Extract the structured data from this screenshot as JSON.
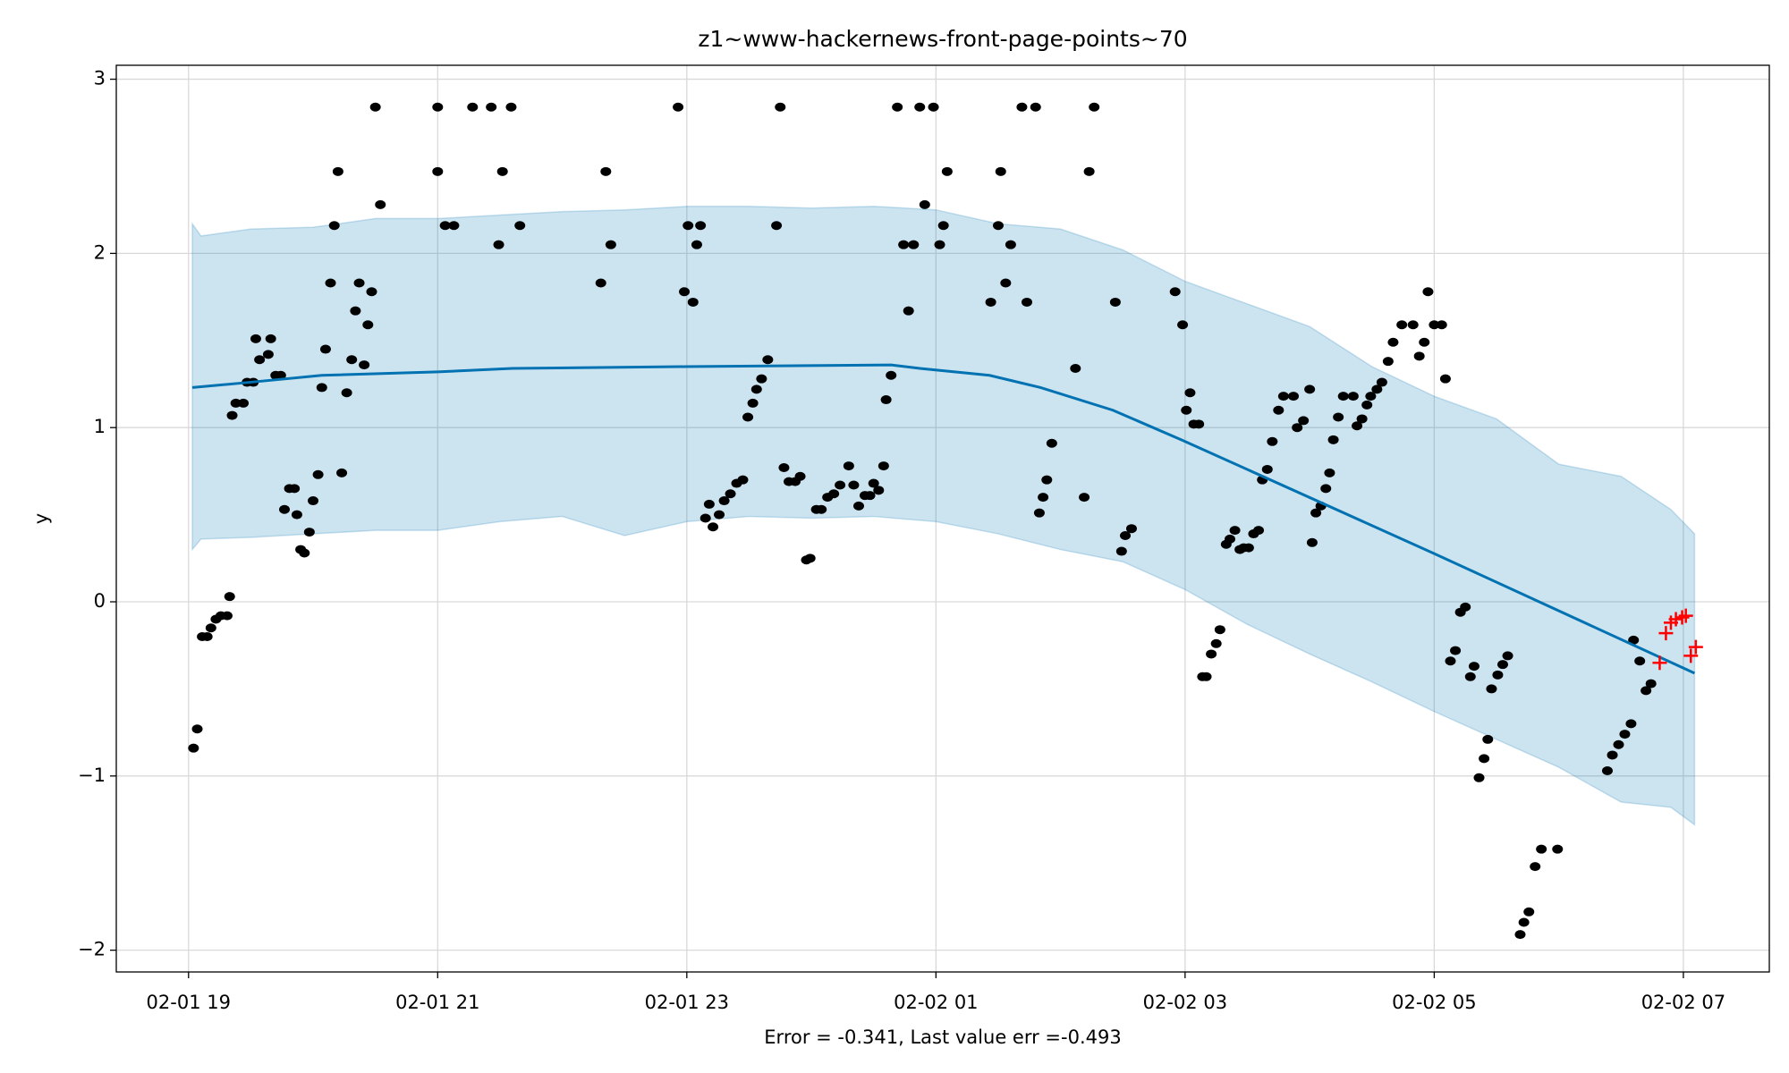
{
  "chart_data": {
    "type": "forecast",
    "title": "z1~www-hackernews-front-page-points~70",
    "xlabel": "Error = -0.341, Last value err =-0.493",
    "ylabel": "y",
    "xlim": [
      -0.58,
      12.69
    ],
    "ylim": [
      -2.125,
      3.08
    ],
    "xticks": [
      {
        "value": 0,
        "label": "02-01 19"
      },
      {
        "value": 2,
        "label": "02-01 21"
      },
      {
        "value": 4,
        "label": "02-01 23"
      },
      {
        "value": 6,
        "label": "02-02 01"
      },
      {
        "value": 8,
        "label": "02-02 03"
      },
      {
        "value": 10,
        "label": "02-02 05"
      },
      {
        "value": 12,
        "label": "02-02 07"
      }
    ],
    "yticks": [
      {
        "value": -2,
        "label": "−2"
      },
      {
        "value": -1,
        "label": "−1"
      },
      0,
      1,
      2,
      3
    ],
    "grid": true,
    "interval": {
      "color": "#0072b2",
      "x": [
        0.03,
        0.1,
        0.5,
        1.0,
        1.5,
        2.0,
        2.5,
        3.0,
        3.5,
        4.0,
        4.5,
        5.0,
        5.5,
        6.0,
        6.5,
        7.0,
        7.5,
        8.0,
        8.5,
        9.0,
        9.5,
        10.0,
        10.5,
        11.0,
        11.5,
        11.9,
        12.09
      ],
      "upper": [
        2.17,
        2.1,
        2.14,
        2.15,
        2.2,
        2.2,
        2.22,
        2.24,
        2.25,
        2.27,
        2.27,
        2.26,
        2.27,
        2.25,
        2.17,
        2.14,
        2.02,
        1.84,
        1.71,
        1.58,
        1.35,
        1.18,
        1.05,
        0.79,
        0.72,
        0.53,
        0.39
      ],
      "lower": [
        0.3,
        0.36,
        0.37,
        0.39,
        0.41,
        0.41,
        0.46,
        0.49,
        0.38,
        0.46,
        0.49,
        0.48,
        0.49,
        0.46,
        0.39,
        0.3,
        0.23,
        0.07,
        -0.13,
        -0.3,
        -0.46,
        -0.63,
        -0.79,
        -0.95,
        -1.15,
        -1.18,
        -1.28
      ]
    },
    "forecast": {
      "color": "#0072b2",
      "x": [
        0.03,
        0.49,
        1.07,
        2.0,
        2.6,
        3.99,
        5.64,
        5.87,
        6.43,
        6.84,
        7.42,
        7.97,
        9.99,
        12.09
      ],
      "y": [
        1.23,
        1.26,
        1.3,
        1.32,
        1.34,
        1.35,
        1.36,
        1.34,
        1.3,
        1.23,
        1.1,
        0.93,
        0.28,
        -0.41
      ]
    },
    "observed": {
      "color": "#000000",
      "x": [
        0.04,
        0.07,
        0.11,
        0.15,
        0.18,
        0.22,
        0.26,
        0.31,
        0.33,
        0.35,
        0.38,
        0.44,
        0.47,
        0.52,
        0.54,
        0.57,
        0.64,
        0.66,
        0.7,
        0.74,
        0.77,
        0.81,
        0.85,
        0.87,
        0.9,
        0.93,
        0.97,
        1.0,
        1.04,
        1.07,
        1.1,
        1.14,
        1.17,
        1.2,
        1.23,
        1.27,
        1.31,
        1.34,
        1.37,
        1.41,
        1.44,
        1.47,
        1.5,
        1.54,
        2.0,
        2.0,
        2.06,
        2.13,
        2.28,
        2.43,
        2.49,
        2.52,
        2.59,
        2.66,
        3.31,
        3.35,
        3.39,
        3.93,
        3.98,
        4.01,
        4.05,
        4.08,
        4.11,
        4.15,
        4.18,
        4.21,
        4.26,
        4.3,
        4.35,
        4.4,
        4.45,
        4.49,
        4.53,
        4.56,
        4.6,
        4.65,
        4.72,
        4.75,
        4.78,
        4.82,
        4.87,
        4.91,
        4.96,
        4.99,
        5.04,
        5.08,
        5.13,
        5.18,
        5.23,
        5.3,
        5.34,
        5.38,
        5.43,
        5.47,
        5.5,
        5.54,
        5.58,
        5.6,
        5.64,
        5.69,
        5.74,
        5.78,
        5.82,
        5.87,
        5.91,
        5.98,
        6.03,
        6.06,
        6.09,
        6.44,
        6.5,
        6.52,
        6.56,
        6.6,
        6.69,
        6.73,
        6.8,
        6.83,
        6.86,
        6.89,
        6.93,
        7.12,
        7.19,
        7.23,
        7.27,
        7.44,
        7.49,
        7.52,
        7.57,
        7.92,
        7.98,
        8.01,
        8.04,
        8.07,
        8.11,
        8.14,
        8.17,
        8.21,
        8.25,
        8.28,
        8.33,
        8.36,
        8.4,
        8.44,
        8.47,
        8.51,
        8.55,
        8.59,
        8.62,
        8.66,
        8.7,
        8.75,
        8.79,
        8.87,
        8.9,
        8.95,
        9.0,
        9.02,
        9.05,
        9.09,
        9.13,
        9.16,
        9.19,
        9.23,
        9.27,
        9.35,
        9.38,
        9.42,
        9.46,
        9.49,
        9.54,
        9.58,
        9.63,
        9.67,
        9.74,
        9.83,
        9.88,
        9.92,
        9.95,
        10.0,
        10.06,
        10.09,
        10.13,
        10.17,
        10.21,
        10.25,
        10.29,
        10.32,
        10.36,
        10.4,
        10.43,
        10.46,
        10.51,
        10.55,
        10.59,
        10.69,
        10.72,
        10.76,
        10.81,
        10.86,
        10.99,
        11.39,
        11.43,
        11.48,
        11.53,
        11.58,
        11.6,
        11.65,
        11.7,
        11.74
      ],
      "y": [
        -0.84,
        -0.73,
        -0.2,
        -0.2,
        -0.15,
        -0.1,
        -0.08,
        -0.08,
        0.03,
        1.07,
        1.14,
        1.14,
        1.26,
        1.26,
        1.51,
        1.39,
        1.42,
        1.51,
        1.3,
        1.3,
        0.53,
        0.65,
        0.65,
        0.5,
        0.3,
        0.28,
        0.4,
        0.58,
        0.73,
        1.23,
        1.45,
        1.83,
        2.16,
        2.47,
        0.74,
        1.2,
        1.39,
        1.67,
        1.83,
        1.36,
        1.59,
        1.78,
        2.84,
        2.28,
        2.84,
        2.47,
        2.16,
        2.16,
        2.84,
        2.84,
        2.05,
        2.47,
        2.84,
        2.16,
        1.83,
        2.47,
        2.05,
        2.84,
        1.78,
        2.16,
        1.72,
        2.05,
        2.16,
        0.48,
        0.56,
        0.43,
        0.5,
        0.58,
        0.62,
        0.68,
        0.7,
        1.06,
        1.14,
        1.22,
        1.28,
        1.39,
        2.16,
        2.84,
        0.77,
        0.69,
        0.69,
        0.72,
        0.24,
        0.25,
        0.53,
        0.53,
        0.6,
        0.62,
        0.67,
        0.78,
        0.67,
        0.55,
        0.61,
        0.61,
        0.68,
        0.64,
        0.78,
        1.16,
        1.3,
        2.84,
        2.05,
        1.67,
        2.05,
        2.84,
        2.28,
        2.84,
        2.05,
        2.16,
        2.47,
        1.72,
        2.16,
        2.47,
        1.83,
        2.05,
        2.84,
        1.72,
        2.84,
        0.51,
        0.6,
        0.7,
        0.91,
        1.34,
        0.6,
        2.47,
        2.84,
        1.72,
        0.29,
        0.38,
        0.42,
        1.78,
        1.59,
        1.1,
        1.2,
        1.02,
        1.02,
        -0.43,
        -0.43,
        -0.3,
        -0.24,
        -0.16,
        0.33,
        0.36,
        0.41,
        0.3,
        0.31,
        0.31,
        0.39,
        0.41,
        0.7,
        0.76,
        0.92,
        1.1,
        1.18,
        1.18,
        1.0,
        1.04,
        1.22,
        0.34,
        0.51,
        0.55,
        0.65,
        0.74,
        0.93,
        1.06,
        1.18,
        1.18,
        1.01,
        1.05,
        1.13,
        1.18,
        1.22,
        1.26,
        1.38,
        1.49,
        1.59,
        1.59,
        1.41,
        1.49,
        1.78,
        1.59,
        1.59,
        1.28,
        -0.34,
        -0.28,
        -0.06,
        -0.03,
        -0.43,
        -0.37,
        -1.01,
        -0.9,
        -0.79,
        -0.5,
        -0.42,
        -0.36,
        -0.31,
        -1.91,
        -1.84,
        -1.78,
        -1.52,
        -1.42,
        -1.42,
        -0.97,
        -0.88,
        -0.82,
        -0.76,
        -0.7,
        -0.22,
        -0.34,
        -0.51,
        -0.47
      ]
    },
    "errors": {
      "color": "#ff0000",
      "x": [
        11.81,
        11.86,
        11.9,
        11.94,
        11.99,
        12.02,
        12.06,
        12.1
      ],
      "y": [
        -0.35,
        -0.18,
        -0.12,
        -0.1,
        -0.09,
        -0.08,
        -0.31,
        -0.26
      ]
    }
  }
}
